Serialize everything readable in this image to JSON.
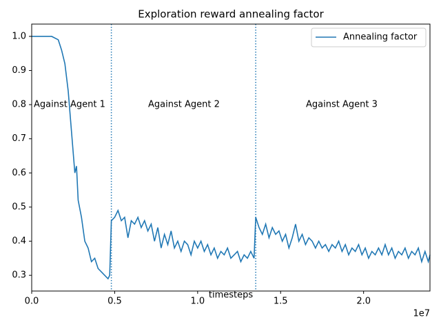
{
  "chart_data": {
    "type": "line",
    "title": "Exploration reward annealing factor",
    "x_label": "timesteps",
    "x_offset_label": "1e7",
    "x": [
      0,
      0.04,
      0.08,
      0.12,
      0.16,
      0.18,
      0.2,
      0.22,
      0.24,
      0.26,
      0.27,
      0.28,
      0.3,
      0.32,
      0.34,
      0.36,
      0.38,
      0.4,
      0.42,
      0.44,
      0.46,
      0.47,
      0.48,
      0.5,
      0.52,
      0.54,
      0.56,
      0.58,
      0.6,
      0.62,
      0.64,
      0.66,
      0.68,
      0.7,
      0.72,
      0.74,
      0.76,
      0.78,
      0.8,
      0.82,
      0.84,
      0.86,
      0.88,
      0.9,
      0.92,
      0.94,
      0.96,
      0.98,
      1.0,
      1.02,
      1.04,
      1.06,
      1.08,
      1.1,
      1.12,
      1.14,
      1.16,
      1.18,
      1.2,
      1.22,
      1.24,
      1.26,
      1.28,
      1.3,
      1.32,
      1.34,
      1.35,
      1.37,
      1.39,
      1.41,
      1.43,
      1.45,
      1.47,
      1.49,
      1.51,
      1.53,
      1.55,
      1.57,
      1.59,
      1.61,
      1.63,
      1.65,
      1.67,
      1.69,
      1.71,
      1.73,
      1.75,
      1.77,
      1.79,
      1.81,
      1.83,
      1.85,
      1.87,
      1.89,
      1.91,
      1.93,
      1.95,
      1.97,
      1.99,
      2.01,
      2.03,
      2.05,
      2.07,
      2.09,
      2.11,
      2.13,
      2.15,
      2.17,
      2.19,
      2.21,
      2.23,
      2.25,
      2.27,
      2.29,
      2.31,
      2.33,
      2.35,
      2.37,
      2.39,
      2.4
    ],
    "series": [
      {
        "name": "Annealing factor",
        "color": "#1f77b4",
        "values": [
          1.0,
          1.0,
          1.0,
          1.0,
          0.99,
          0.96,
          0.92,
          0.84,
          0.72,
          0.6,
          0.62,
          0.52,
          0.47,
          0.4,
          0.38,
          0.34,
          0.35,
          0.32,
          0.31,
          0.3,
          0.29,
          0.3,
          0.46,
          0.47,
          0.49,
          0.46,
          0.47,
          0.41,
          0.46,
          0.45,
          0.47,
          0.44,
          0.46,
          0.43,
          0.45,
          0.4,
          0.44,
          0.38,
          0.42,
          0.39,
          0.43,
          0.38,
          0.4,
          0.37,
          0.4,
          0.39,
          0.36,
          0.4,
          0.38,
          0.4,
          0.37,
          0.39,
          0.36,
          0.38,
          0.35,
          0.37,
          0.36,
          0.38,
          0.35,
          0.36,
          0.37,
          0.34,
          0.36,
          0.35,
          0.37,
          0.35,
          0.47,
          0.44,
          0.42,
          0.45,
          0.41,
          0.44,
          0.42,
          0.43,
          0.4,
          0.42,
          0.38,
          0.41,
          0.45,
          0.4,
          0.42,
          0.39,
          0.41,
          0.4,
          0.38,
          0.4,
          0.38,
          0.39,
          0.37,
          0.39,
          0.38,
          0.4,
          0.37,
          0.39,
          0.36,
          0.38,
          0.37,
          0.39,
          0.36,
          0.38,
          0.35,
          0.37,
          0.36,
          0.38,
          0.36,
          0.39,
          0.36,
          0.38,
          0.35,
          0.37,
          0.36,
          0.38,
          0.35,
          0.37,
          0.36,
          0.38,
          0.34,
          0.37,
          0.34,
          0.36
        ]
      }
    ],
    "vlines": [
      0.48,
      1.35
    ],
    "annotations": [
      "Against Agent 1",
      "Against Agent 2",
      "Against Agent 3"
    ],
    "xlim": [
      0,
      2.4
    ],
    "ylim": [
      0.254,
      1.036
    ],
    "xticks": [
      {
        "value": 0,
        "label": "0.0"
      },
      0.5,
      {
        "value": 1,
        "label": "1.0"
      },
      1.5,
      {
        "value": 2,
        "label": "2.0"
      }
    ],
    "yticks": [
      0.3,
      0.4,
      0.5,
      0.6,
      0.7,
      0.8,
      0.9,
      {
        "value": 1,
        "label": "1.0"
      }
    ],
    "legend": "upper right"
  }
}
